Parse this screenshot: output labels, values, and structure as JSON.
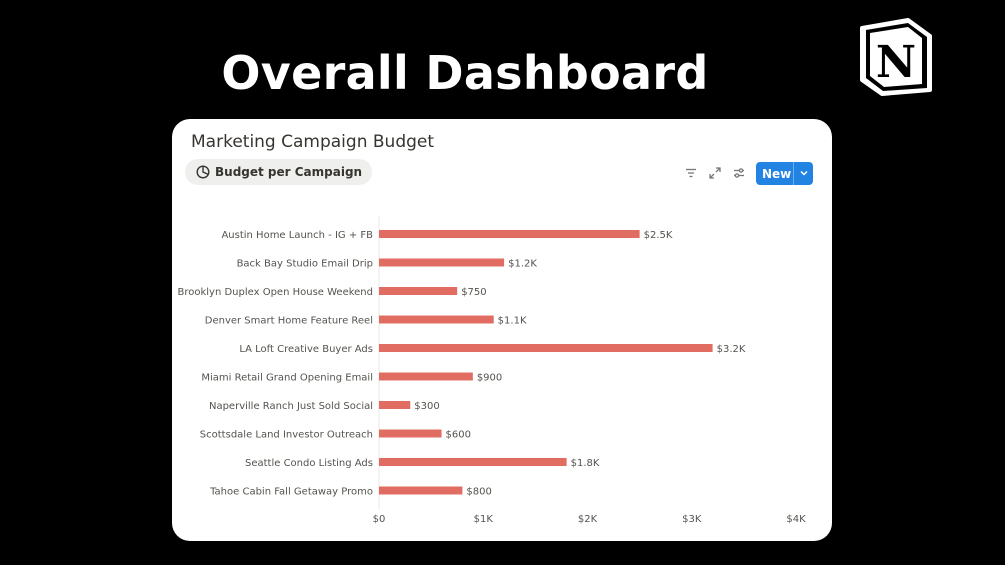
{
  "headline": "Overall Dashboard",
  "logo": {
    "letter": "N",
    "icon": "notion-logo-icon"
  },
  "card": {
    "title": "Marketing Campaign Budget",
    "view_tab": {
      "label": "Budget per Campaign",
      "icon": "pie-chart-icon"
    },
    "toolbar": {
      "filter_icon": "filter-icon",
      "expand_icon": "expand-icon",
      "settings_icon": "sliders-icon",
      "new_label": "New",
      "new_caret_icon": "chevron-down-icon"
    }
  },
  "colors": {
    "bar": "#e16d62",
    "accent": "#2383e2",
    "background": "#000000"
  },
  "chart_data": {
    "type": "bar",
    "orientation": "horizontal",
    "categories": [
      "Austin Home Launch - IG + FB",
      "Back Bay Studio Email Drip",
      "Brooklyn Duplex Open House Weekend",
      "Denver Smart Home Feature Reel",
      "LA Loft Creative Buyer Ads",
      "Miami Retail Grand Opening Email",
      "Naperville Ranch Just Sold Social",
      "Scottsdale Land Investor Outreach",
      "Seattle Condo Listing Ads",
      "Tahoe Cabin Fall Getaway Promo"
    ],
    "values": [
      2500,
      1200,
      750,
      1100,
      3200,
      900,
      300,
      600,
      1800,
      800
    ],
    "data_labels": [
      "$2.5K",
      "$1.2K",
      "$750",
      "$1.1K",
      "$3.2K",
      "$900",
      "$300",
      "$600",
      "$1.8K",
      "$800"
    ],
    "xticks": [
      0,
      1000,
      2000,
      3000,
      4000
    ],
    "xtick_labels": [
      "$0",
      "$1K",
      "$2K",
      "$3K",
      "$4K"
    ],
    "xlim": [
      0,
      4000
    ],
    "grid": false,
    "legend": "none"
  }
}
